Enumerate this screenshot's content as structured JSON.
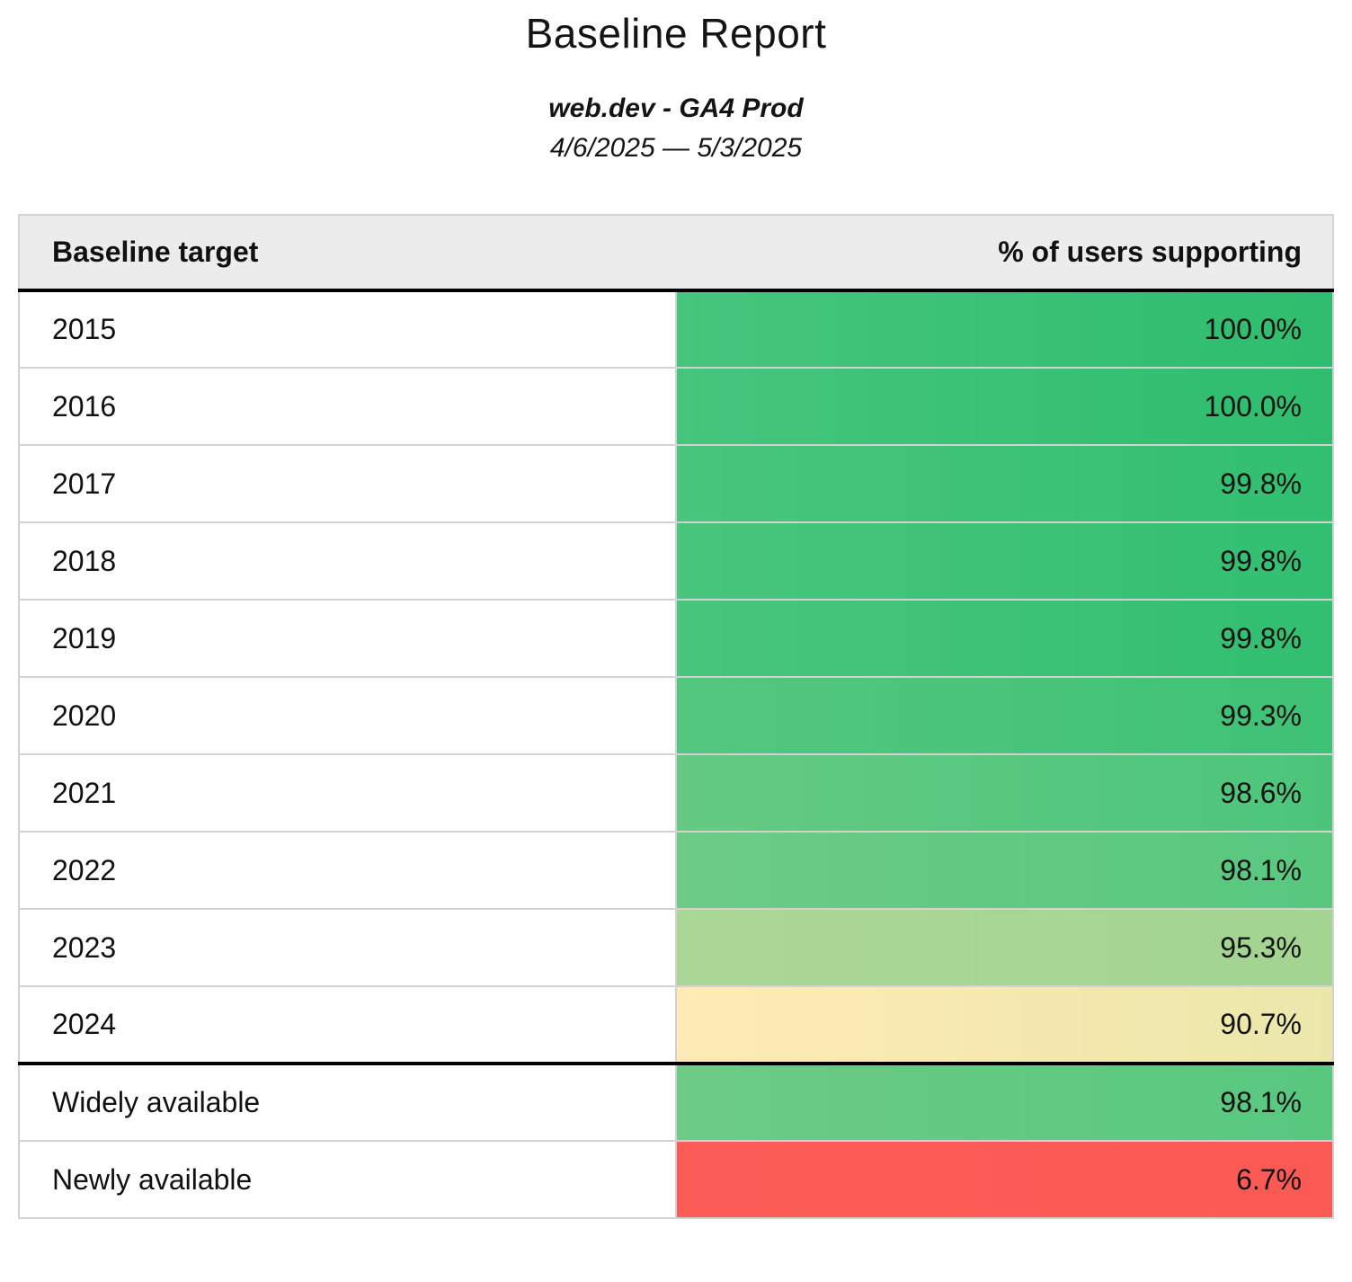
{
  "report": {
    "title": "Baseline Report",
    "subtitle": "web.dev - GA4 Prod",
    "date_range": "4/6/2025 — 5/3/2025"
  },
  "table": {
    "columns": [
      "Baseline target",
      "% of users supporting"
    ],
    "rows": [
      {
        "target": "2015",
        "value": "100.0%",
        "bg_left": "#46c57d",
        "bg_right": "#2ebd6e",
        "section_start": false
      },
      {
        "target": "2016",
        "value": "100.0%",
        "bg_left": "#46c57d",
        "bg_right": "#2ebd6e",
        "section_start": false
      },
      {
        "target": "2017",
        "value": "99.8%",
        "bg_left": "#49c57d",
        "bg_right": "#31bf71",
        "section_start": false
      },
      {
        "target": "2018",
        "value": "99.8%",
        "bg_left": "#49c57d",
        "bg_right": "#31bf71",
        "section_start": false
      },
      {
        "target": "2019",
        "value": "99.8%",
        "bg_left": "#49c57d",
        "bg_right": "#31bf71",
        "section_start": false
      },
      {
        "target": "2020",
        "value": "99.3%",
        "bg_left": "#54c77e",
        "bg_right": "#3ec276",
        "section_start": false
      },
      {
        "target": "2021",
        "value": "98.6%",
        "bg_left": "#64ca83",
        "bg_right": "#4cc57b",
        "section_start": false
      },
      {
        "target": "2022",
        "value": "98.1%",
        "bg_left": "#6ccb86",
        "bg_right": "#58c87f",
        "section_start": false
      },
      {
        "target": "2023",
        "value": "95.3%",
        "bg_left": "#abd796",
        "bg_right": "#a3d492",
        "section_start": false
      },
      {
        "target": "2024",
        "value": "90.7%",
        "bg_left": "#ffeab5",
        "bg_right": "#ebe7ab",
        "section_start": false
      },
      {
        "target": "Widely available",
        "value": "98.1%",
        "bg_left": "#6ccb86",
        "bg_right": "#58c87f",
        "section_start": true
      },
      {
        "target": "Newly available",
        "value": "6.7%",
        "bg_left": "#fc5c57",
        "bg_right": "#fb5954",
        "section_start": false
      }
    ]
  },
  "colors": {
    "header_bg": "#ececec",
    "grid_border": "#d2d2d2",
    "section_border": "#000000",
    "text": "#111111"
  },
  "chart_data": {
    "type": "table",
    "title": "Baseline Report",
    "subtitle": "web.dev - GA4 Prod",
    "date_range": "4/6/2025 — 5/3/2025",
    "columns": [
      "Baseline target",
      "% of users supporting"
    ],
    "categories": [
      "2015",
      "2016",
      "2017",
      "2018",
      "2019",
      "2020",
      "2021",
      "2022",
      "2023",
      "2024",
      "Widely available",
      "Newly available"
    ],
    "values": [
      100.0,
      100.0,
      99.8,
      99.8,
      99.8,
      99.3,
      98.6,
      98.1,
      95.3,
      90.7,
      98.1,
      6.7
    ],
    "value_unit": "%",
    "color_scale": "green-to-yellow-to-red by value",
    "layout": "two-column table, values right-aligned, color-coded value cells, thick divider between year rows and availability rows"
  }
}
